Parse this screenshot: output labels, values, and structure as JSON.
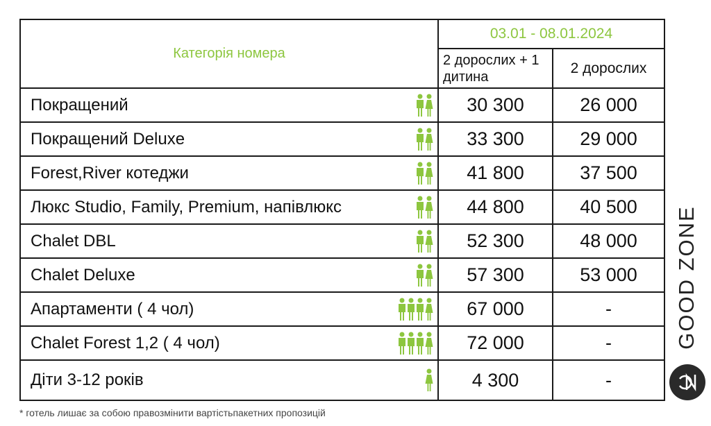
{
  "header": {
    "category_label": "Категорія номера",
    "date_range": "03.01 - 08.01.2024",
    "col1_label": "2 дорослих + 1 дитина",
    "col2_label": "2 дорослих"
  },
  "rows": [
    {
      "name": "Покращений",
      "icon": "two-adults-icon",
      "p1": "30 300",
      "p2": "26 000"
    },
    {
      "name": "Покращений Deluxe",
      "icon": "two-adults-icon",
      "p1": "33 300",
      "p2": "29 000"
    },
    {
      "name": "Forest,River котеджи",
      "icon": "two-adults-icon",
      "p1": "41 800",
      "p2": "37 500"
    },
    {
      "name": "Люкс Studio, Family, Premium, напівлюкс",
      "icon": "two-adults-icon",
      "p1": "44 800",
      "p2": "40 500"
    },
    {
      "name": "Chalet DBL",
      "icon": "two-adults-icon",
      "p1": "52 300",
      "p2": "48 000"
    },
    {
      "name": "Chalet Deluxe",
      "icon": "two-adults-icon",
      "p1": "57 300",
      "p2": "53 000"
    },
    {
      "name": "Апартаменти ( 4 чол)",
      "icon": "four-people-icon",
      "p1": "67 000",
      "p2": "-"
    },
    {
      "name": "Chalet Forest 1,2 ( 4 чол)",
      "icon": "four-people-icon",
      "p1": "72 000",
      "p2": "-"
    },
    {
      "name": "Діти 3-12 років",
      "icon": "child-icon",
      "p1": "4 300",
      "p2": "-"
    }
  ],
  "footnote": "* готель лишає за собою правозмінити вартістьпакетних пропозицій",
  "brand": {
    "text": "GOOD ZONE",
    "accent_color": "#8dc63f",
    "border_color": "#1a1a1a"
  }
}
